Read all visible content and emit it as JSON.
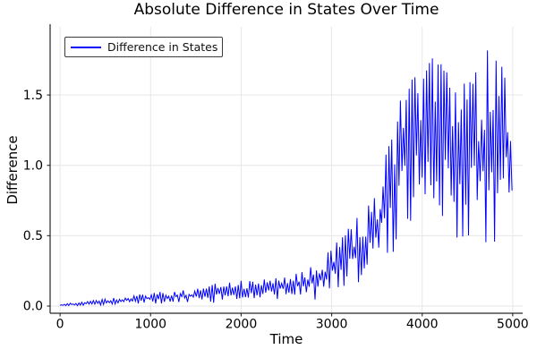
{
  "chart_data": {
    "type": "line",
    "title": "Absolute Difference in States Over Time",
    "xlabel": "Time",
    "ylabel": "Difference",
    "xlim": [
      -110,
      5110
    ],
    "ylim": [
      -0.051,
      1.984
    ],
    "xticks": {
      "values": [
        0,
        1000,
        2000,
        3000,
        4000,
        5000
      ],
      "labels": [
        "0",
        "1000",
        "2000",
        "3000",
        "4000",
        "5000"
      ]
    },
    "yticks": {
      "values": [
        0.0,
        0.5,
        1.0,
        1.5
      ],
      "labels": [
        "0.0",
        "0.5",
        "1.0",
        "1.5"
      ]
    },
    "grid": true,
    "legend": {
      "position": "upper-left",
      "entries": [
        {
          "label": "Difference in States",
          "color": "#0000ff"
        }
      ]
    },
    "series": [
      {
        "name": "Difference in States",
        "color": "#0000ff",
        "style": "dense-oscillation",
        "oscillation_period_t": 32,
        "x_range": [
          0,
          5000
        ],
        "envelope": [
          [
            0,
            0.001,
            0.012
          ],
          [
            300,
            0.004,
            0.035
          ],
          [
            600,
            0.008,
            0.06
          ],
          [
            900,
            0.012,
            0.09
          ],
          [
            1200,
            0.02,
            0.11
          ],
          [
            1500,
            0.03,
            0.12
          ],
          [
            1700,
            0.02,
            0.16
          ],
          [
            2000,
            0.04,
            0.18
          ],
          [
            2300,
            0.05,
            0.2
          ],
          [
            2600,
            0.05,
            0.23
          ],
          [
            2800,
            0.04,
            0.3
          ],
          [
            2950,
            0.04,
            0.42
          ],
          [
            3050,
            0.08,
            0.48
          ],
          [
            3150,
            0.1,
            0.52
          ],
          [
            3250,
            0.12,
            0.62
          ],
          [
            3350,
            0.2,
            0.68
          ],
          [
            3450,
            0.25,
            0.8
          ],
          [
            3550,
            0.3,
            0.95
          ],
          [
            3650,
            0.35,
            1.25
          ],
          [
            3750,
            0.45,
            1.75
          ],
          [
            3850,
            0.5,
            1.85
          ],
          [
            3950,
            0.5,
            1.62
          ],
          [
            4050,
            0.4,
            1.8
          ],
          [
            4150,
            0.35,
            1.93
          ],
          [
            4250,
            0.45,
            1.88
          ],
          [
            4350,
            0.5,
            1.72
          ],
          [
            4450,
            0.45,
            1.78
          ],
          [
            4550,
            0.4,
            1.82
          ],
          [
            4650,
            0.3,
            1.88
          ],
          [
            4750,
            0.35,
            1.9
          ],
          [
            4850,
            0.5,
            1.8
          ],
          [
            4950,
            0.55,
            1.58
          ],
          [
            5000,
            0.55,
            1.42
          ]
        ]
      }
    ],
    "colors": {
      "line": "#0000ff",
      "grid": "#e6e6e6",
      "spine": "#262626",
      "tick_text": "#000000",
      "background": "#ffffff"
    }
  }
}
